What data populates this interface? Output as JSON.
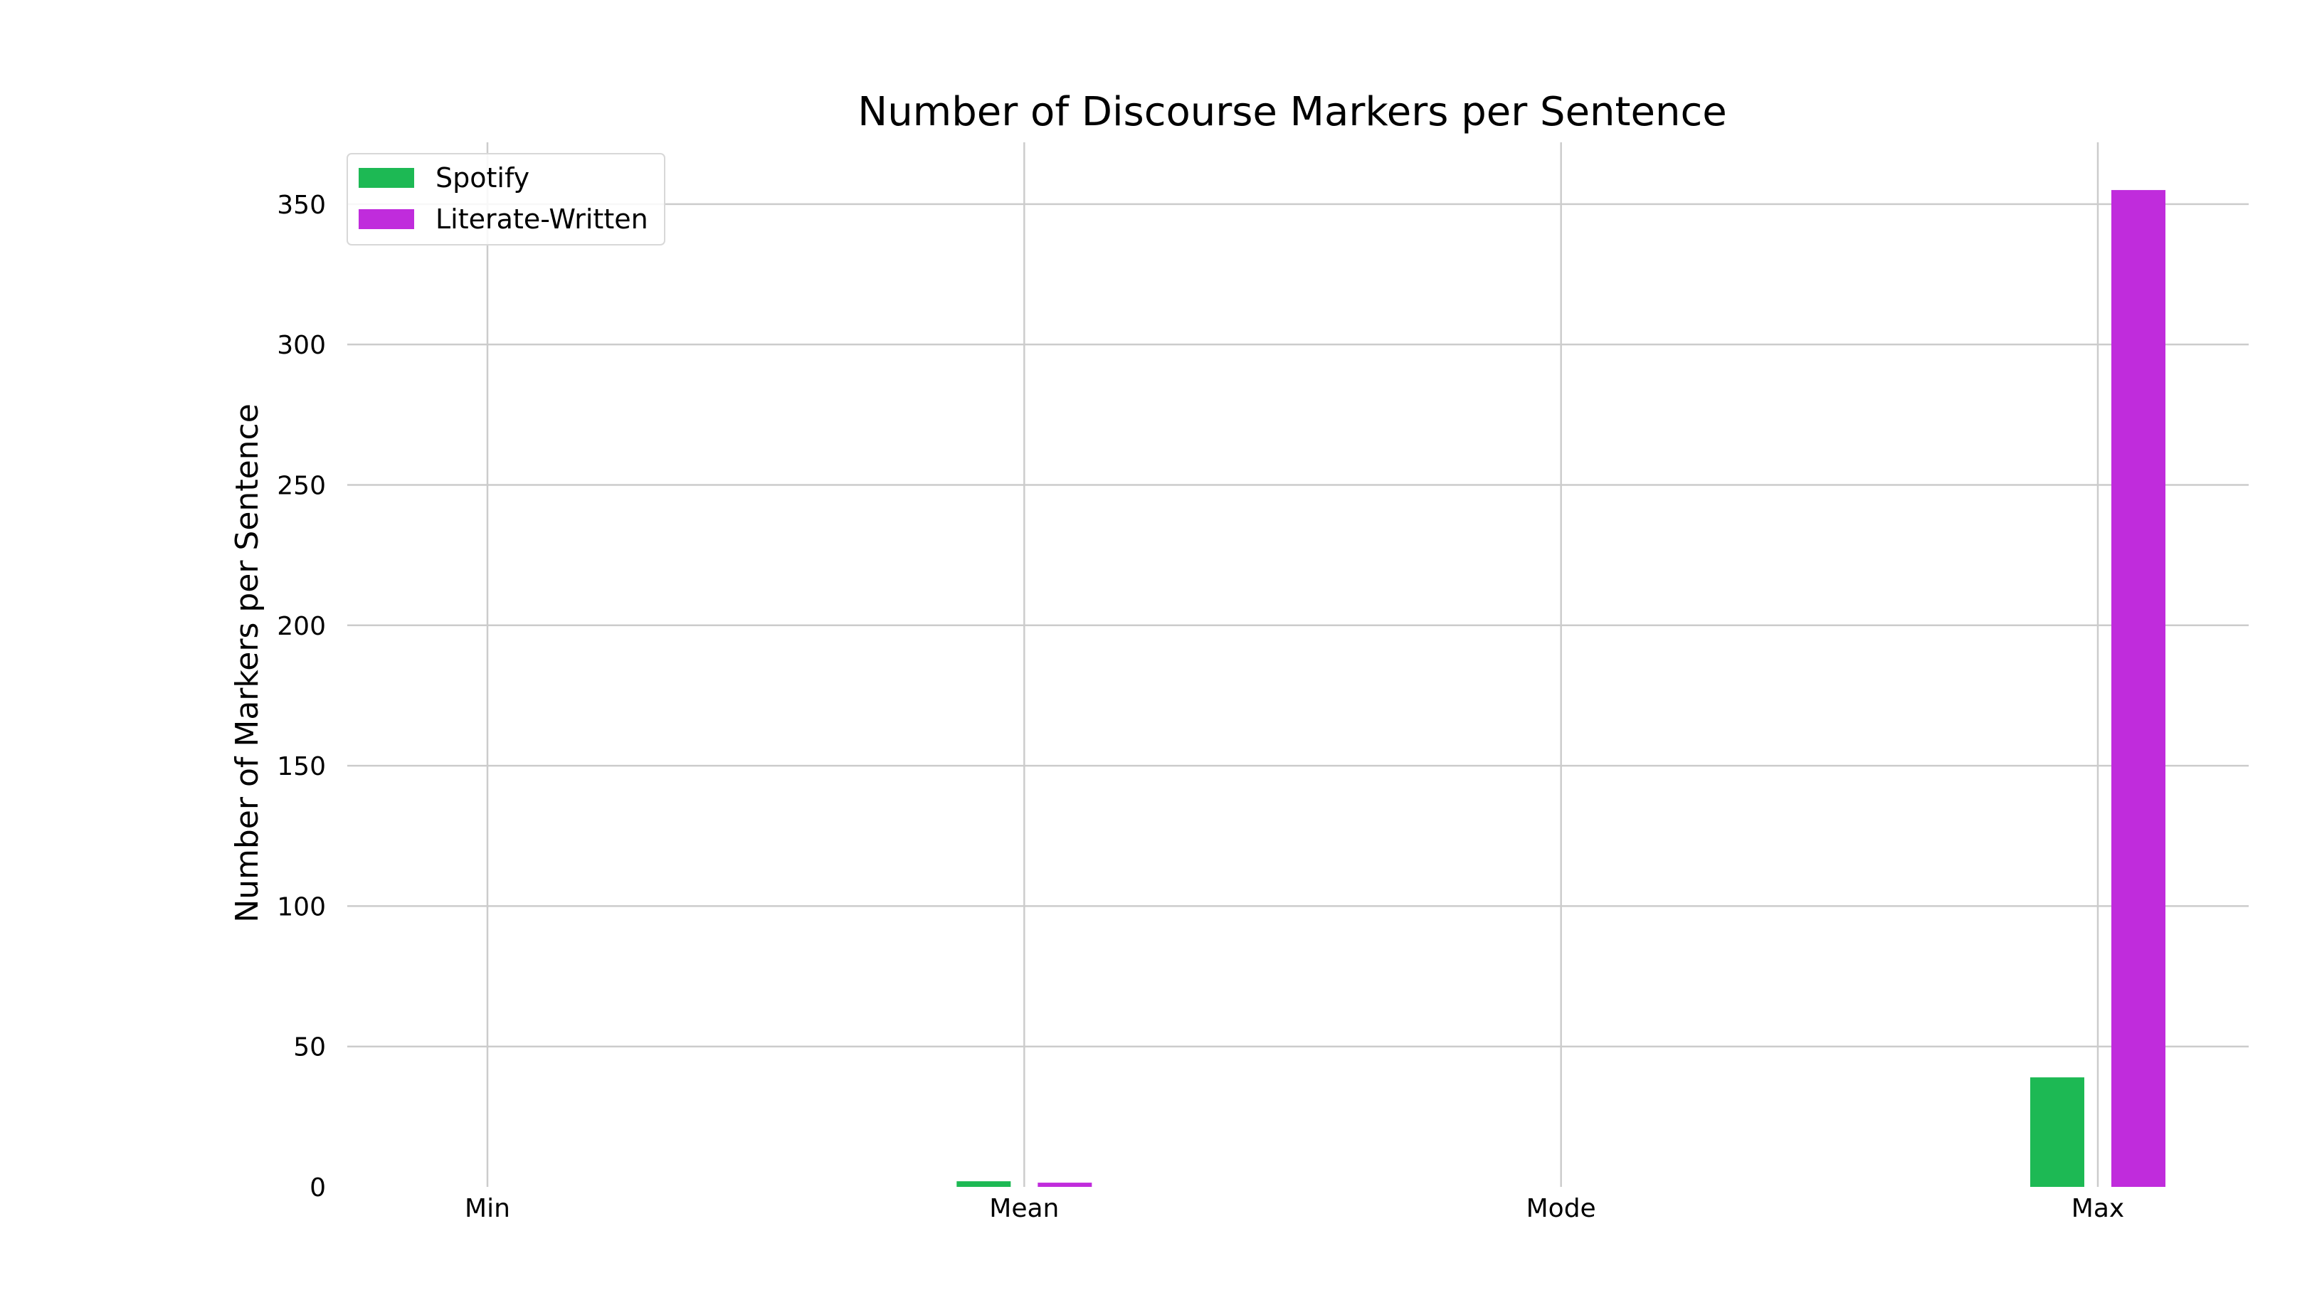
{
  "chart_data": {
    "type": "bar",
    "title": "Number of Discourse Markers per Sentence",
    "xlabel": "",
    "ylabel": "Number of Markers per Sentence",
    "categories": [
      "Min",
      "Mean",
      "Mode",
      "Max"
    ],
    "series": [
      {
        "name": "Spotify",
        "color": "#1db954",
        "values": [
          0,
          2,
          0,
          39
        ]
      },
      {
        "name": "Literate-Written",
        "color": "#c02cdc",
        "values": [
          0,
          1.5,
          0,
          355
        ]
      }
    ],
    "ylim": [
      0,
      372
    ],
    "yticks": [
      0,
      50,
      100,
      150,
      200,
      250,
      300,
      350
    ],
    "grid": true,
    "legend_position": "top-left"
  }
}
